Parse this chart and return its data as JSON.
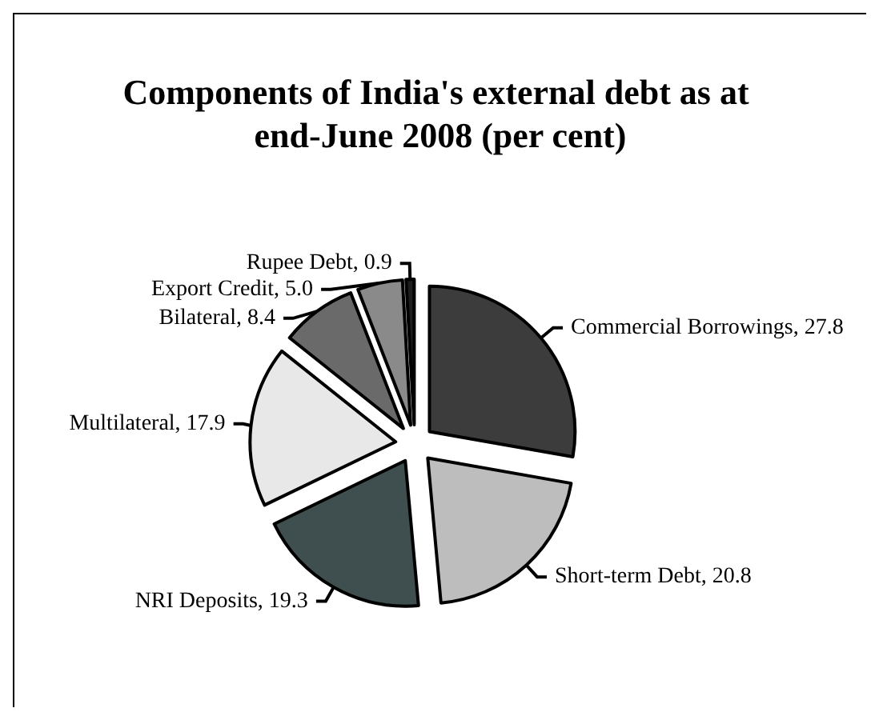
{
  "chart_data": {
    "type": "pie",
    "title": "Components of India's external debt as at end-June 2008 (per cent)",
    "categories": [
      "Commercial Borrowings",
      "Short-term Debt",
      "NRI Deposits",
      "Multilateral",
      "Bilateral",
      "Export Credit",
      "Rupee Debt"
    ],
    "values": [
      27.8,
      20.8,
      19.3,
      17.9,
      8.4,
      5.0,
      0.9
    ],
    "value_labels": [
      "27.8",
      "20.8",
      "19.3",
      "17.9",
      "8.4",
      "5.0",
      "0.9"
    ],
    "colors": [
      "#3c3c3c",
      "#bdbdbd",
      "#3f4f4f",
      "#e8e8e8",
      "#6a6a6a",
      "#8a8a8a",
      "#1e1e1e"
    ],
    "legend": false
  }
}
